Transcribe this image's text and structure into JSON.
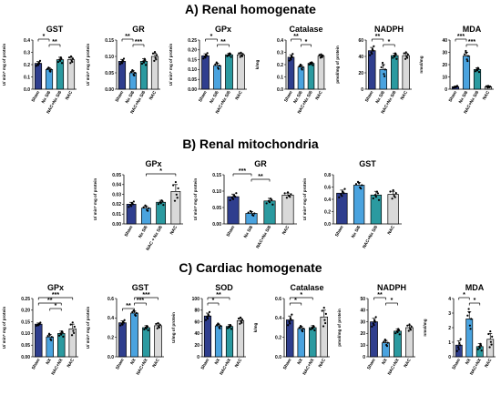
{
  "sections": [
    {
      "title": "A) Renal homogenate"
    },
    {
      "title": "B) Renal mitochondria"
    },
    {
      "title": "C) Cardiac homogenate"
    }
  ],
  "colors": {
    "sham": "#2f3e8e",
    "nx": "#4aa3df",
    "nac_nx": "#2b9aa0",
    "nac": "#d9d9d9"
  },
  "chart_data": [
    {
      "type": "bar",
      "section": "A",
      "title": "GST",
      "ylabel": "U/ min* mg of protein",
      "categories": [
        "Sham",
        "Nx S/6",
        "NAC+Nx S/6",
        "NAC"
      ],
      "values": [
        0.21,
        0.16,
        0.24,
        0.24
      ],
      "errors": [
        0.015,
        0.012,
        0.02,
        0.02
      ],
      "ylim": [
        0,
        0.4
      ],
      "yticks": [
        "0.0",
        "0.1",
        "0.2",
        "0.3",
        "0.4"
      ],
      "significance": [
        [
          "*",
          0,
          1
        ],
        [
          "**",
          1,
          2
        ]
      ]
    },
    {
      "type": "bar",
      "section": "A",
      "title": "GR",
      "ylabel": "U/ min* mg of protein",
      "categories": [
        "Sham",
        "Nx S/6",
        "NAC+Nx S/6",
        "NAC"
      ],
      "values": [
        0.085,
        0.05,
        0.085,
        0.1
      ],
      "errors": [
        0.006,
        0.006,
        0.008,
        0.01
      ],
      "ylim": [
        0,
        0.15
      ],
      "yticks": [
        "0.00",
        "0.05",
        "0.10",
        "0.15"
      ],
      "significance": [
        [
          "**",
          0,
          1
        ],
        [
          "***",
          1,
          2
        ]
      ]
    },
    {
      "type": "bar",
      "section": "A",
      "title": "GPx",
      "ylabel": "U/ min* mg of protein",
      "categories": [
        "Sham",
        "Nx S/6",
        "NAC+Nx S/6",
        "NAC"
      ],
      "values": [
        0.17,
        0.12,
        0.175,
        0.175
      ],
      "errors": [
        0.01,
        0.012,
        0.008,
        0.008
      ],
      "ylim": [
        0,
        0.25
      ],
      "yticks": [
        "0.00",
        "0.05",
        "0.10",
        "0.15",
        "0.20",
        "0.25"
      ],
      "significance": [
        [
          "*",
          0,
          1
        ],
        [
          "**",
          1,
          2
        ]
      ]
    },
    {
      "type": "bar",
      "section": "A",
      "title": "Catalase",
      "ylabel": "k/mg",
      "categories": [
        "Sham",
        "Nx S/6",
        "NAC+Nx S/6",
        "NAC"
      ],
      "values": [
        0.26,
        0.18,
        0.21,
        0.27
      ],
      "errors": [
        0.02,
        0.015,
        0.01,
        0.01
      ],
      "ylim": [
        0,
        0.4
      ],
      "yticks": [
        "0.0",
        "0.1",
        "0.2",
        "0.3",
        "0.4"
      ],
      "significance": [
        [
          "**",
          0,
          1
        ],
        [
          "*",
          1,
          2
        ]
      ]
    },
    {
      "type": "bar",
      "section": "A",
      "title": "NADPH",
      "ylabel": "pmol/mg of protein",
      "categories": [
        "Sham",
        "Nx S/6",
        "NAC+Nx S/6",
        "NAC"
      ],
      "values": [
        47,
        24,
        41,
        41
      ],
      "errors": [
        4,
        6,
        3,
        3
      ],
      "ylim": [
        0,
        60
      ],
      "yticks": [
        "0",
        "20",
        "40",
        "60"
      ],
      "significance": [
        [
          "**",
          0,
          1
        ],
        [
          "*",
          1,
          2
        ]
      ]
    },
    {
      "type": "bar",
      "section": "A",
      "title": "MDA",
      "ylabel": "nmol/mg",
      "categories": [
        "Sham",
        "Nx S/6",
        "NAC+Nx S/6",
        "NAC"
      ],
      "values": [
        2,
        27,
        16,
        2
      ],
      "errors": [
        0.5,
        3,
        1.5,
        0.5
      ],
      "ylim": [
        0,
        40
      ],
      "yticks": [
        "0",
        "10",
        "20",
        "30",
        "40"
      ],
      "significance": [
        [
          "***",
          0,
          1
        ],
        [
          "***",
          1,
          2
        ]
      ]
    },
    {
      "type": "bar",
      "section": "B",
      "title": "GPx",
      "ylabel": "U/ min* mg of protein",
      "categories": [
        "Sham",
        "Nx S/6",
        "NAC + Nx S/6",
        "NAC"
      ],
      "values": [
        0.02,
        0.016,
        0.022,
        0.033
      ],
      "errors": [
        0.002,
        0.002,
        0.002,
        0.007
      ],
      "ylim": [
        0,
        0.05
      ],
      "yticks": [
        "0.00",
        "0.01",
        "0.02",
        "0.03",
        "0.04",
        "0.05"
      ],
      "significance": [
        [
          "*",
          1,
          3
        ]
      ]
    },
    {
      "type": "bar",
      "section": "B",
      "title": "GR",
      "ylabel": "U/ min* mg of protein",
      "categories": [
        "Sham",
        "Nx S/6",
        "NAC+Nx S/6",
        "NAC"
      ],
      "values": [
        0.083,
        0.032,
        0.07,
        0.088
      ],
      "errors": [
        0.008,
        0.005,
        0.008,
        0.006
      ],
      "ylim": [
        0,
        0.15
      ],
      "yticks": [
        "0.00",
        "0.05",
        "0.10",
        "0.15"
      ],
      "significance": [
        [
          "***",
          0,
          1
        ],
        [
          "**",
          1,
          2
        ]
      ]
    },
    {
      "type": "bar",
      "section": "B",
      "title": "GST",
      "ylabel": "U/ min* mg of protein",
      "categories": [
        "Sham",
        "Nx S/6",
        "NAC+Nx S/6",
        "NAC"
      ],
      "values": [
        0.5,
        0.63,
        0.47,
        0.48
      ],
      "errors": [
        0.05,
        0.04,
        0.06,
        0.05
      ],
      "ylim": [
        0,
        0.8
      ],
      "yticks": [
        "0.0",
        "0.2",
        "0.4",
        "0.6",
        "0.8"
      ],
      "significance": []
    },
    {
      "type": "bar",
      "section": "C",
      "title": "GPx",
      "ylabel": "U/ min* mg of protein",
      "categories": [
        "Sham",
        "NX",
        "NAC+NX",
        "NAC"
      ],
      "values": [
        0.14,
        0.085,
        0.1,
        0.12
      ],
      "errors": [
        0.005,
        0.01,
        0.01,
        0.02
      ],
      "ylim": [
        0,
        0.25
      ],
      "yticks": [
        "0.00",
        "0.05",
        "0.10",
        "0.15",
        "0.20",
        "0.25"
      ],
      "significance": [
        [
          "***",
          0,
          3
        ],
        [
          "**",
          0,
          2
        ],
        [
          "*",
          1,
          2
        ]
      ]
    },
    {
      "type": "bar",
      "section": "C",
      "title": "GST",
      "ylabel": "U/ min* mg of protein",
      "categories": [
        "Sham",
        "NX",
        "NAC+NX",
        "NAC"
      ],
      "values": [
        0.35,
        0.45,
        0.3,
        0.32
      ],
      "errors": [
        0.02,
        0.02,
        0.02,
        0.02
      ],
      "ylim": [
        0,
        0.6
      ],
      "yticks": [
        "0.0",
        "0.2",
        "0.4",
        "0.6"
      ],
      "significance": [
        [
          "***",
          1,
          3
        ],
        [
          "***",
          1,
          2
        ],
        [
          "**",
          0,
          1
        ]
      ]
    },
    {
      "type": "bar",
      "section": "C",
      "title": "SOD",
      "ylabel": "U/mg of protein",
      "categories": [
        "Sham",
        "NX",
        "NAC+NX",
        "NAC"
      ],
      "values": [
        70,
        53,
        52,
        62
      ],
      "errors": [
        5,
        3,
        3,
        4
      ],
      "ylim": [
        0,
        100
      ],
      "yticks": [
        "0",
        "20",
        "40",
        "60",
        "80",
        "100"
      ],
      "significance": [
        [
          "**",
          0,
          2
        ],
        [
          "*",
          0,
          1
        ]
      ]
    },
    {
      "type": "bar",
      "section": "C",
      "title": "Catalase",
      "ylabel": "k/mg",
      "categories": [
        "Sham",
        "NX",
        "NAC+NX",
        "NAC"
      ],
      "values": [
        0.38,
        0.29,
        0.3,
        0.41
      ],
      "errors": [
        0.04,
        0.02,
        0.02,
        0.07
      ],
      "ylim": [
        0,
        0.6
      ],
      "yticks": [
        "0.0",
        "0.2",
        "0.4",
        "0.6"
      ],
      "significance": [
        [
          "*",
          0,
          2
        ],
        [
          "*",
          0,
          1
        ]
      ]
    },
    {
      "type": "bar",
      "section": "C",
      "title": "NADPH",
      "ylabel": "pmol/mg of protein",
      "categories": [
        "Sham",
        "NX",
        "NAC+NX",
        "NAC"
      ],
      "values": [
        30,
        12,
        22,
        25
      ],
      "errors": [
        3,
        2,
        2,
        2
      ],
      "ylim": [
        0,
        50
      ],
      "yticks": [
        "0",
        "10",
        "20",
        "30",
        "40",
        "50"
      ],
      "significance": [
        [
          "**",
          0,
          1
        ],
        [
          "*",
          1,
          2
        ]
      ]
    },
    {
      "type": "bar",
      "section": "C",
      "title": "MDA",
      "ylabel": "nmol/mg",
      "categories": [
        "Sham",
        "NX",
        "NAC+NX",
        "NAC"
      ],
      "values": [
        0.8,
        2.6,
        0.7,
        1.2
      ],
      "errors": [
        0.3,
        0.5,
        0.2,
        0.4
      ],
      "ylim": [
        0,
        4
      ],
      "yticks": [
        "0",
        "1",
        "2",
        "3",
        "4"
      ],
      "significance": [
        [
          "*",
          0,
          1
        ],
        [
          "*",
          1,
          2
        ]
      ]
    }
  ]
}
